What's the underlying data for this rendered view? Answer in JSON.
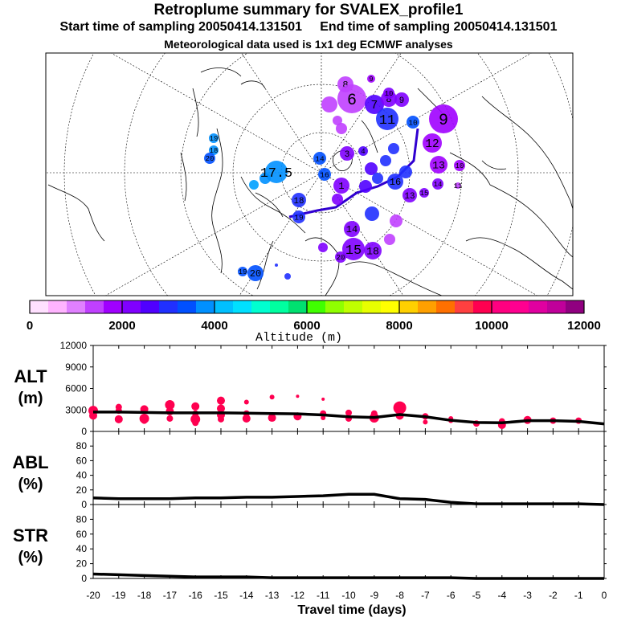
{
  "titles": {
    "line1": "Retroplume summary for SVALEX_profile1",
    "line2": "Start time of sampling 20050414.131501     End time of sampling 20050414.131501",
    "line3": "Meteorological data used is 1x1 deg ECMWF analyses"
  },
  "colorbar": {
    "label": "Altitude (m)",
    "min": 0,
    "max": 12000,
    "tick_labels": [
      "0",
      "2000",
      "4000",
      "6000",
      "8000",
      "10000",
      "12000"
    ],
    "colors": [
      "#ffe0ff",
      "#ffb4ff",
      "#e080ff",
      "#c040ff",
      "#a000ff",
      "#8000ff",
      "#5000ff",
      "#2030ff",
      "#0050ff",
      "#0090ff",
      "#00c0ff",
      "#00e0ff",
      "#00ffd0",
      "#00ffa0",
      "#00e070",
      "#40ff00",
      "#90ff00",
      "#c0ff00",
      "#e8ff00",
      "#ffff00",
      "#ffd000",
      "#ffa000",
      "#ff7000",
      "#ff4040",
      "#ff0050",
      "#ff0080",
      "#ff0090",
      "#e000a0",
      "#c0009a",
      "#900080"
    ]
  },
  "map": {
    "plume_labels": [
      {
        "t": "8",
        "c": "#c040ff"
      },
      {
        "t": "9",
        "c": "#a000ff"
      },
      {
        "t": "6",
        "c": "#c040ff"
      },
      {
        "t": "7",
        "c": "#5000ff"
      },
      {
        "t": "8",
        "c": "#8000ff"
      },
      {
        "t": "9",
        "c": "#8000ff"
      },
      {
        "t": "10",
        "c": "#8000ff"
      },
      {
        "t": "11",
        "c": "#2030ff"
      },
      {
        "t": "10",
        "c": "#0050ff"
      },
      {
        "t": "9",
        "c": "#a000ff"
      },
      {
        "t": "12",
        "c": "#a000ff"
      },
      {
        "t": "13",
        "c": "#a000ff"
      },
      {
        "t": "10",
        "c": "#a000ff"
      },
      {
        "t": "3",
        "c": "#8000ff"
      },
      {
        "t": "4",
        "c": "#5000ff"
      },
      {
        "t": "14",
        "c": "#0050ff"
      },
      {
        "t": "16",
        "c": "#0050ff"
      },
      {
        "t": "1",
        "c": "#8000ff"
      },
      {
        "t": "17.5",
        "c": "#0090ff"
      },
      {
        "t": "19",
        "c": "#0090ff"
      },
      {
        "t": "18",
        "c": "#0090ff"
      },
      {
        "t": "20",
        "c": "#0050ff"
      },
      {
        "t": "18",
        "c": "#2030ff"
      },
      {
        "t": "19",
        "c": "#2030ff"
      },
      {
        "t": "14",
        "c": "#8000ff"
      },
      {
        "t": "15",
        "c": "#8000ff"
      },
      {
        "t": "18",
        "c": "#8000ff"
      },
      {
        "t": "20",
        "c": "#8000ff"
      },
      {
        "t": "19",
        "c": "#0050ff"
      },
      {
        "t": "20",
        "c": "#0050ff"
      },
      {
        "t": "16",
        "c": "#2030ff"
      },
      {
        "t": "13",
        "c": "#8000ff"
      },
      {
        "t": "14",
        "c": "#8000ff"
      },
      {
        "t": "15",
        "c": "#8000ff"
      },
      {
        "t": "11",
        "c": "#c040ff"
      }
    ]
  },
  "chart_data": [
    {
      "type": "line",
      "panel": "ALT",
      "ylabel": "ALT\n(m)",
      "ylim": [
        0,
        12000
      ],
      "yticks": [
        "0",
        "3000",
        "6000",
        "9000",
        "12000"
      ],
      "x": [
        -20,
        -19,
        -18,
        -17,
        -16,
        -15,
        -14,
        -13,
        -12,
        -11,
        -10,
        -9,
        -8,
        -7,
        -6,
        -5,
        -4,
        -3,
        -2,
        -1,
        0
      ],
      "values": [
        2700,
        2700,
        2650,
        2600,
        2600,
        2600,
        2550,
        2500,
        2450,
        2300,
        2050,
        1950,
        2350,
        2050,
        1550,
        1250,
        1200,
        1500,
        1500,
        1400,
        1050
      ],
      "clusters": [
        {
          "x": -20,
          "alts": [
            2900,
            2200
          ],
          "sizes": [
            6,
            5
          ]
        },
        {
          "x": -19,
          "alts": [
            3400,
            2900,
            1700
          ],
          "sizes": [
            4,
            4,
            5
          ]
        },
        {
          "x": -18,
          "alts": [
            3100,
            1800,
            1500
          ],
          "sizes": [
            5,
            6,
            4
          ]
        },
        {
          "x": -17,
          "alts": [
            3700,
            2800,
            1800
          ],
          "sizes": [
            6,
            5,
            4
          ]
        },
        {
          "x": -16,
          "alts": [
            3500,
            2500,
            1700,
            1200
          ],
          "sizes": [
            5,
            4,
            6,
            4
          ]
        },
        {
          "x": -15,
          "alts": [
            4300,
            3200,
            2300,
            1700
          ],
          "sizes": [
            5,
            5,
            5,
            4
          ]
        },
        {
          "x": -14,
          "alts": [
            4100,
            2500,
            1800
          ],
          "sizes": [
            3,
            4,
            5
          ]
        },
        {
          "x": -13,
          "alts": [
            4800,
            1900
          ],
          "sizes": [
            3,
            5
          ]
        },
        {
          "x": -12,
          "alts": [
            4900,
            2100
          ],
          "sizes": [
            2,
            5
          ]
        },
        {
          "x": -11,
          "alts": [
            4500,
            2500,
            1900
          ],
          "sizes": [
            2,
            4,
            3
          ]
        },
        {
          "x": -10,
          "alts": [
            2600,
            1800
          ],
          "sizes": [
            4,
            4
          ]
        },
        {
          "x": -9,
          "alts": [
            2500,
            1900
          ],
          "sizes": [
            4,
            6
          ]
        },
        {
          "x": -8,
          "alts": [
            3300,
            2200
          ],
          "sizes": [
            8,
            5
          ]
        },
        {
          "x": -7,
          "alts": [
            2100,
            1300
          ],
          "sizes": [
            4,
            3
          ]
        },
        {
          "x": -6,
          "alts": [
            1800,
            1500
          ],
          "sizes": [
            3,
            3
          ]
        },
        {
          "x": -5,
          "alts": [
            1100
          ],
          "sizes": [
            4
          ]
        },
        {
          "x": -4,
          "alts": [
            1400,
            900
          ],
          "sizes": [
            4,
            5
          ]
        },
        {
          "x": -3,
          "alts": [
            1600
          ],
          "sizes": [
            5
          ]
        },
        {
          "x": -2,
          "alts": [
            1500
          ],
          "sizes": [
            4
          ]
        },
        {
          "x": -1,
          "alts": [
            1500
          ],
          "sizes": [
            4
          ]
        }
      ]
    },
    {
      "type": "line",
      "panel": "ABL",
      "ylabel": "ABL\n(%)",
      "ylim": [
        0,
        100
      ],
      "yticks": [
        "0",
        "20",
        "40",
        "60",
        "80"
      ],
      "x": [
        -20,
        -19,
        -18,
        -17,
        -16,
        -15,
        -14,
        -13,
        -12,
        -11,
        -10,
        -9,
        -8,
        -7,
        -6,
        -5,
        -4,
        -3,
        -2,
        -1,
        0
      ],
      "values": [
        9,
        8,
        8,
        8,
        9,
        9,
        10,
        10,
        11,
        12,
        14,
        14,
        8,
        7,
        3,
        1,
        1,
        1,
        1,
        1,
        0
      ]
    },
    {
      "type": "line",
      "panel": "STR",
      "ylabel": "STR\n(%)",
      "ylim": [
        0,
        100
      ],
      "yticks": [
        "0",
        "20",
        "40",
        "60",
        "80"
      ],
      "x": [
        -20,
        -19,
        -18,
        -17,
        -16,
        -15,
        -14,
        -13,
        -12,
        -11,
        -10,
        -9,
        -8,
        -7,
        -6,
        -5,
        -4,
        -3,
        -2,
        -1,
        0
      ],
      "values": [
        6,
        5,
        4,
        3,
        2,
        2,
        2,
        1,
        1,
        1,
        1,
        1,
        1,
        1,
        1,
        0,
        0,
        0,
        0,
        0,
        0
      ]
    },
    {
      "type": "axis",
      "xlabel": "Travel time (days)",
      "xticks": [
        "-20",
        "-19",
        "-18",
        "-17",
        "-16",
        "-15",
        "-14",
        "-13",
        "-12",
        "-11",
        "-10",
        "-9",
        "-8",
        "-7",
        "-6",
        "-5",
        "-4",
        "-3",
        "-2",
        "-1",
        "0"
      ],
      "xlim": [
        -20,
        0
      ]
    }
  ]
}
